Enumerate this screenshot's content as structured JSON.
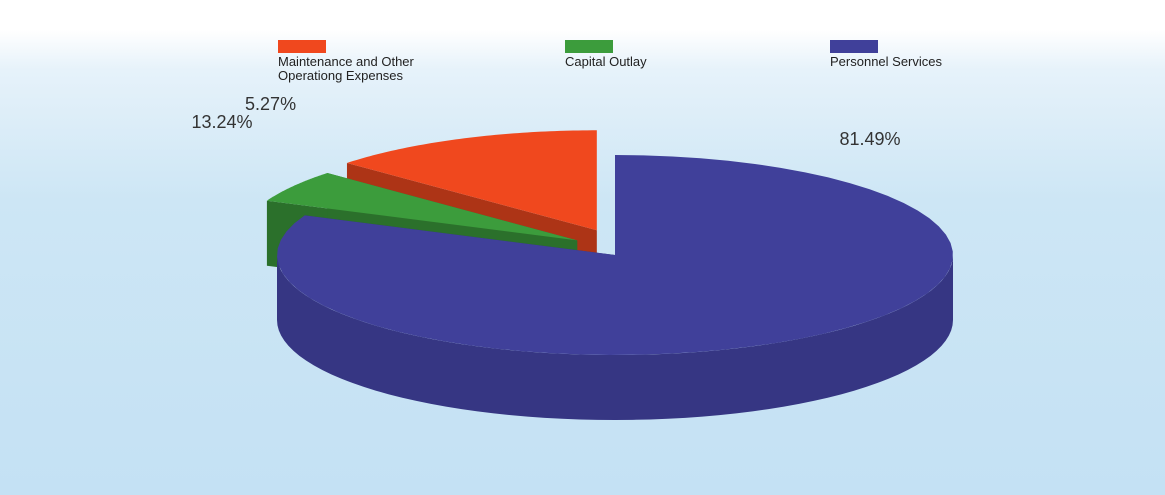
{
  "chart_data": {
    "type": "pie",
    "categories": [
      "Maintenance and Other\nOperationg Expenses",
      "Capital Outlay",
      "Personnel Services"
    ],
    "values": [
      13.24,
      5.27,
      81.49
    ],
    "value_labels": [
      "13.24%",
      "5.27%",
      "81.49%"
    ],
    "colors": [
      "#f0481e",
      "#3c9c3c",
      "#40409a"
    ],
    "legend": "top"
  }
}
